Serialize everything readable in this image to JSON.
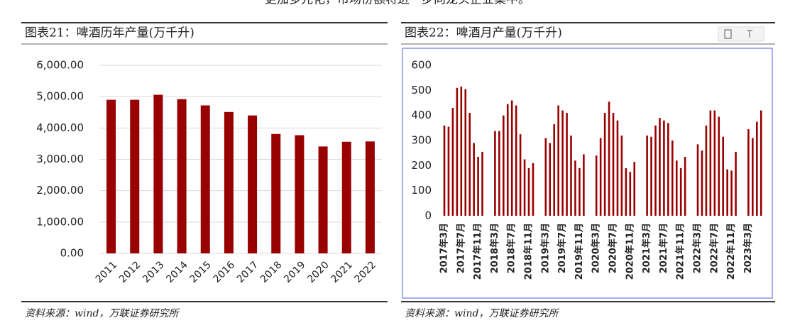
{
  "header": {
    "text": "更加多元化，市场份额将进一步向龙头企业集中。"
  },
  "chart_data": [
    {
      "type": "bar",
      "title": "图表21：啤酒历年产量(万千升)",
      "color": "#990000",
      "grid": true,
      "categories": [
        "2011",
        "2012",
        "2013",
        "2014",
        "2015",
        "2016",
        "2017",
        "2018",
        "2019",
        "2020",
        "2021",
        "2022"
      ],
      "values": [
        4900,
        4900,
        5060,
        4920,
        4720,
        4510,
        4400,
        3810,
        3770,
        3410,
        3560,
        3570
      ],
      "ylim": [
        0,
        6000
      ],
      "yticks": [
        {
          "value": 0,
          "label": "0.00"
        },
        {
          "value": 1000,
          "label": "1,000.00"
        },
        {
          "value": 2000,
          "label": "2,000.00"
        },
        {
          "value": 3000,
          "label": "3,000.00"
        },
        {
          "value": 4000,
          "label": "4,000.00"
        },
        {
          "value": 5000,
          "label": "5,000.00"
        },
        {
          "value": 6000,
          "label": "6,000.00"
        }
      ],
      "source": "资料来源：wind，万联证券研究所"
    },
    {
      "type": "bar",
      "title": "图表22：啤酒月产量(万千升)",
      "color": "#990000",
      "grid": false,
      "categories": [
        "2017年3月",
        null,
        null,
        null,
        "2017年7月",
        null,
        null,
        null,
        "2017年11月",
        null,
        null,
        null,
        "2018年3月",
        null,
        null,
        null,
        "2018年7月",
        null,
        null,
        null,
        "2018年11月",
        null,
        null,
        null,
        "2019年3月",
        null,
        null,
        null,
        "2019年7月",
        null,
        null,
        null,
        "2019年11月",
        null,
        null,
        null,
        "2020年3月",
        null,
        null,
        null,
        "2020年7月",
        null,
        null,
        null,
        "2020年11月",
        null,
        null,
        null,
        "2021年3月",
        null,
        null,
        null,
        "2021年7月",
        null,
        null,
        null,
        "2021年11月",
        null,
        null,
        null,
        "2022年3月",
        null,
        null,
        null,
        "2022年7月",
        null,
        null,
        null,
        "2022年11月",
        null,
        null,
        null,
        "2023年3月",
        null,
        null,
        null
      ],
      "values": [
        360,
        355,
        430,
        510,
        515,
        505,
        410,
        290,
        235,
        255,
        null,
        null,
        338,
        338,
        400,
        445,
        460,
        440,
        325,
        225,
        190,
        210,
        null,
        null,
        310,
        290,
        365,
        440,
        420,
        410,
        320,
        220,
        190,
        245,
        null,
        null,
        240,
        310,
        410,
        455,
        410,
        380,
        320,
        190,
        175,
        215,
        null,
        null,
        320,
        315,
        360,
        390,
        380,
        370,
        300,
        220,
        190,
        235,
        null,
        null,
        285,
        260,
        360,
        420,
        420,
        395,
        315,
        185,
        180,
        255,
        null,
        null,
        345,
        310,
        375,
        420
      ],
      "ylim": [
        0,
        600
      ],
      "yticks": [
        0,
        100,
        200,
        300,
        400,
        500,
        600
      ],
      "source": "资料来源：wind，万联证券研究所"
    }
  ]
}
